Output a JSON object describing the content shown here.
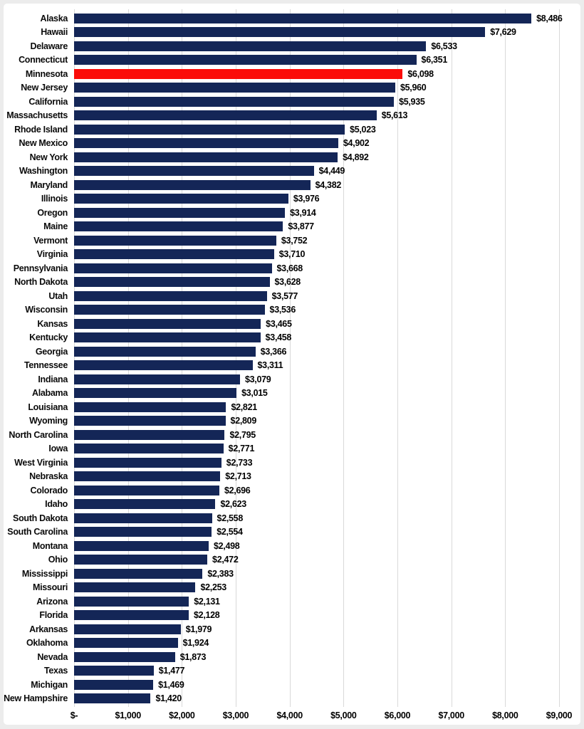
{
  "chart_data": {
    "type": "bar",
    "orientation": "horizontal",
    "title": "",
    "xlabel": "",
    "ylabel": "",
    "xlim": [
      0,
      9000
    ],
    "grid": "vertical",
    "grid_color": "#D9D9D9",
    "bar_color": "#142657",
    "highlight_color": "#FB0C09",
    "highlight_index": 4,
    "highlight_category": "Minnesota",
    "categories": [
      "Alaska",
      "Hawaii",
      "Delaware",
      "Connecticut",
      "Minnesota",
      "New Jersey",
      "California",
      "Massachusetts",
      "Rhode Island",
      "New Mexico",
      "New York",
      "Washington",
      "Maryland",
      "Illinois",
      "Oregon",
      "Maine",
      "Vermont",
      "Virginia",
      "Pennsylvania",
      "North Dakota",
      "Utah",
      "Wisconsin",
      "Kansas",
      "Kentucky",
      "Georgia",
      "Tennessee",
      "Indiana",
      "Alabama",
      "Louisiana",
      "Wyoming",
      "North Carolina",
      "Iowa",
      "West Virginia",
      "Nebraska",
      "Colorado",
      "Idaho",
      "South Dakota",
      "South Carolina",
      "Montana",
      "Ohio",
      "Mississippi",
      "Missouri",
      "Arizona",
      "Florida",
      "Arkansas",
      "Oklahoma",
      "Nevada",
      "Texas",
      "Michigan",
      "New Hampshire"
    ],
    "values": [
      8486,
      7629,
      6533,
      6351,
      6098,
      5960,
      5935,
      5613,
      5023,
      4902,
      4892,
      4449,
      4382,
      3976,
      3914,
      3877,
      3752,
      3710,
      3668,
      3628,
      3577,
      3536,
      3465,
      3458,
      3366,
      3311,
      3079,
      3015,
      2821,
      2809,
      2795,
      2771,
      2733,
      2713,
      2696,
      2623,
      2558,
      2554,
      2498,
      2472,
      2383,
      2253,
      2131,
      2128,
      1979,
      1924,
      1873,
      1477,
      1469,
      1420
    ],
    "value_labels": [
      "$8,486",
      "$7,629",
      "$6,533",
      "$6,351",
      "$6,098",
      "$5,960",
      "$5,935",
      "$5,613",
      "$5,023",
      "$4,902",
      "$4,892",
      "$4,449",
      "$4,382",
      "$3,976",
      "$3,914",
      "$3,877",
      "$3,752",
      "$3,710",
      "$3,668",
      "$3,628",
      "$3,577",
      "$3,536",
      "$3,465",
      "$3,458",
      "$3,366",
      "$3,311",
      "$3,079",
      "$3,015",
      "$2,821",
      "$2,809",
      "$2,795",
      "$2,771",
      "$2,733",
      "$2,713",
      "$2,696",
      "$2,623",
      "$2,558",
      "$2,554",
      "$2,498",
      "$2,472",
      "$2,383",
      "$2,253",
      "$2,131",
      "$2,128",
      "$1,979",
      "$1,924",
      "$1,873",
      "$1,477",
      "$1,469",
      "$1,420"
    ],
    "x_ticks": [
      "$-",
      "$1,000",
      "$2,000",
      "$3,000",
      "$4,000",
      "$5,000",
      "$6,000",
      "$7,000",
      "$8,000",
      "$9,000"
    ],
    "x_tick_values": [
      0,
      1000,
      2000,
      3000,
      4000,
      5000,
      6000,
      7000,
      8000,
      9000
    ]
  }
}
